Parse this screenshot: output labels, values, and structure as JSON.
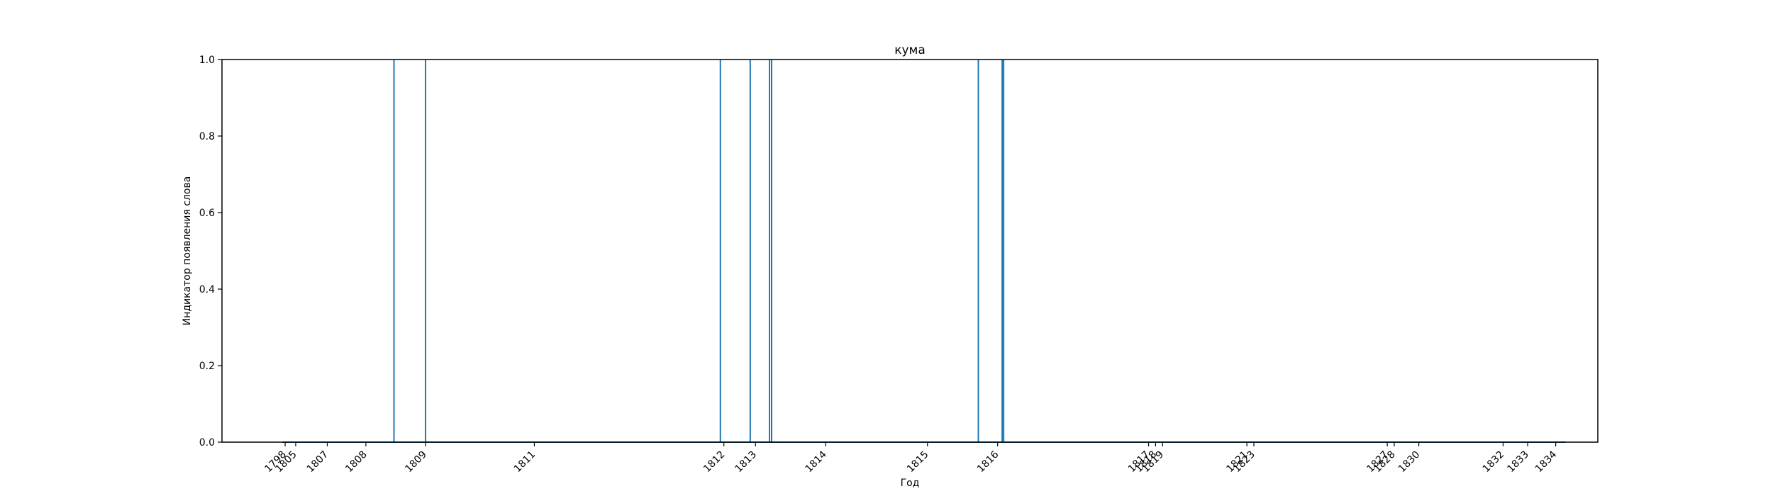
{
  "chart_data": {
    "type": "bar",
    "title": "кума",
    "xlabel": "Год",
    "ylabel": "Индикатор появления слова",
    "xlim": [
      1797.4,
      1836.6
    ],
    "ylim": [
      0,
      1
    ],
    "y_ticks": [
      0,
      0.2,
      0.4,
      0.6,
      0.8,
      1
    ],
    "y_tick_labels": [
      "0.0",
      "0.2",
      "0.4",
      "0.6",
      "0.8",
      "1.0"
    ],
    "x_ticks": [
      {
        "value": 1799.2,
        "label": "1798"
      },
      {
        "value": 1799.5,
        "label": "1805"
      },
      {
        "value": 1800.4,
        "label": "1807"
      },
      {
        "value": 1801.5,
        "label": "1808"
      },
      {
        "value": 1803.2,
        "label": "1809"
      },
      {
        "value": 1806.3,
        "label": "1811"
      },
      {
        "value": 1811.7,
        "label": "1812"
      },
      {
        "value": 1812.6,
        "label": "1813"
      },
      {
        "value": 1814.6,
        "label": "1814"
      },
      {
        "value": 1817.5,
        "label": "1815"
      },
      {
        "value": 1819.5,
        "label": "1816"
      },
      {
        "value": 1823.8,
        "label": "1817"
      },
      {
        "value": 1824.0,
        "label": "1818"
      },
      {
        "value": 1824.2,
        "label": "1819"
      },
      {
        "value": 1826.6,
        "label": "1821"
      },
      {
        "value": 1826.8,
        "label": "1823"
      },
      {
        "value": 1830.6,
        "label": "1827"
      },
      {
        "value": 1830.8,
        "label": "1828"
      },
      {
        "value": 1831.5,
        "label": "1830"
      },
      {
        "value": 1833.9,
        "label": "1832"
      },
      {
        "value": 1834.6,
        "label": "1833"
      },
      {
        "value": 1835.4,
        "label": "1834"
      }
    ],
    "series": [
      {
        "color": "#1f77b4",
        "points": [
          {
            "x": 1802.3,
            "y": 1
          },
          {
            "x": 1803.2,
            "y": 1
          },
          {
            "x": 1811.6,
            "y": 1
          },
          {
            "x": 1812.45,
            "y": 1
          },
          {
            "x": 1813.0,
            "y": 1
          },
          {
            "x": 1813.06,
            "y": 1
          },
          {
            "x": 1818.95,
            "y": 1
          },
          {
            "x": 1819.63,
            "y": 1
          },
          {
            "x": 1819.67,
            "y": 1
          }
        ]
      }
    ],
    "grid": false
  }
}
